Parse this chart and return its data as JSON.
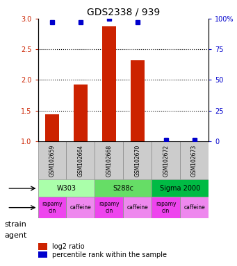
{
  "title": "GDS2338 / 939",
  "samples": [
    "GSM102659",
    "GSM102664",
    "GSM102668",
    "GSM102670",
    "GSM102672",
    "GSM102673"
  ],
  "log2_ratio": [
    1.44,
    1.93,
    2.87,
    2.32,
    1.0,
    1.0
  ],
  "percentile_rank": [
    97,
    97,
    100,
    97,
    1,
    1
  ],
  "bar_color": "#cc2200",
  "dot_color": "#0000cc",
  "ylim_left": [
    1.0,
    3.0
  ],
  "ylim_right": [
    0,
    100
  ],
  "yticks_left": [
    1.0,
    1.5,
    2.0,
    2.5,
    3.0
  ],
  "yticks_right": [
    0,
    25,
    50,
    75,
    100
  ],
  "hlines": [
    1.5,
    2.0,
    2.5
  ],
  "strains": [
    {
      "label": "W303",
      "cols": [
        0,
        1
      ],
      "color": "#aaffaa"
    },
    {
      "label": "S288c",
      "cols": [
        2,
        3
      ],
      "color": "#66dd66"
    },
    {
      "label": "Sigma 2000",
      "cols": [
        4,
        5
      ],
      "color": "#00bb44"
    }
  ],
  "agents": [
    {
      "label": "rapamycin",
      "col": 0,
      "color": "#ee44ee"
    },
    {
      "label": "caffeine",
      "col": 1,
      "color": "#ee88ee"
    },
    {
      "label": "rapamycin",
      "col": 2,
      "color": "#ee44ee"
    },
    {
      "label": "caffeine",
      "col": 3,
      "color": "#ee88ee"
    },
    {
      "label": "rapamycin",
      "col": 4,
      "color": "#ee44ee"
    },
    {
      "label": "caffeine",
      "col": 5,
      "color": "#ee88ee"
    }
  ],
  "strain_label": "strain",
  "agent_label": "agent",
  "legend_bar_label": "log2 ratio",
  "legend_dot_label": "percentile rank within the sample",
  "left_axis_color": "#cc2200",
  "right_axis_color": "#0000cc",
  "background_color": "#ffffff"
}
